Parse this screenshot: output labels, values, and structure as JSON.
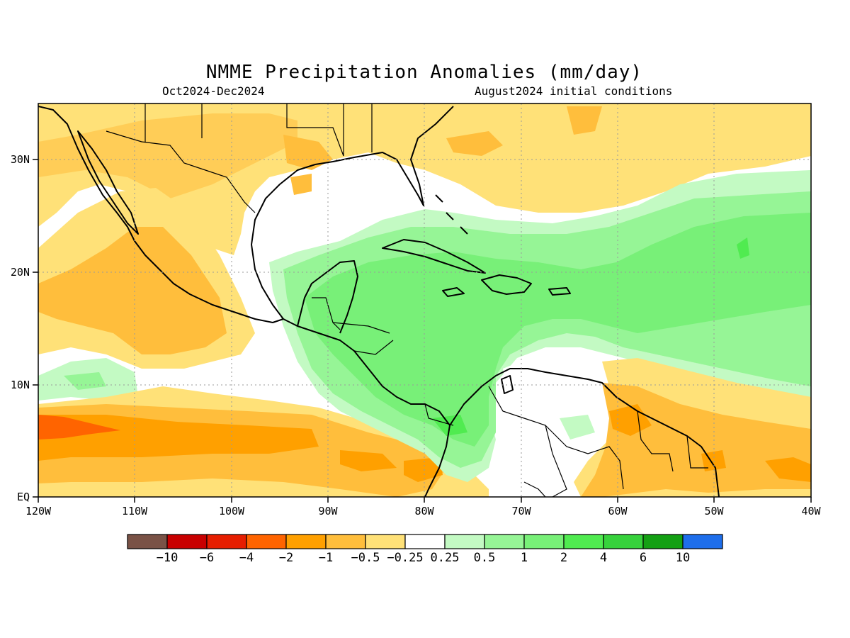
{
  "header": {
    "title": "NMME Precipitation Anomalies (mm/day)",
    "period": "Oct2024-Dec2024",
    "init": "August2024 initial conditions"
  },
  "axes": {
    "x_ticks": [
      "120W",
      "110W",
      "100W",
      "90W",
      "80W",
      "70W",
      "60W",
      "50W",
      "40W"
    ],
    "y_ticks": [
      "EQ",
      "10N",
      "20N",
      "30N"
    ],
    "lon_range": [
      -120,
      -40
    ],
    "lat_range": [
      0,
      35
    ],
    "grid": "dotted"
  },
  "colorbar": {
    "colors": [
      "#7a5246",
      "#c80000",
      "#e61e00",
      "#ff6400",
      "#ffa000",
      "#ffbe3c",
      "#ffe178",
      "#ffffff",
      "#c3fac3",
      "#96f596",
      "#78f078",
      "#50eb50",
      "#37d23c",
      "#14a014",
      "#1e6eeb"
    ],
    "labels": [
      "-10",
      "-6",
      "-4",
      "-2",
      "-1",
      "-0.5",
      "-0.25",
      "0.25",
      "0.5",
      "1",
      "2",
      "4",
      "6",
      "10"
    ]
  },
  "map": {
    "region": "Caribbean / Central America / Mexico",
    "land_outline": "coastlines and political borders"
  }
}
